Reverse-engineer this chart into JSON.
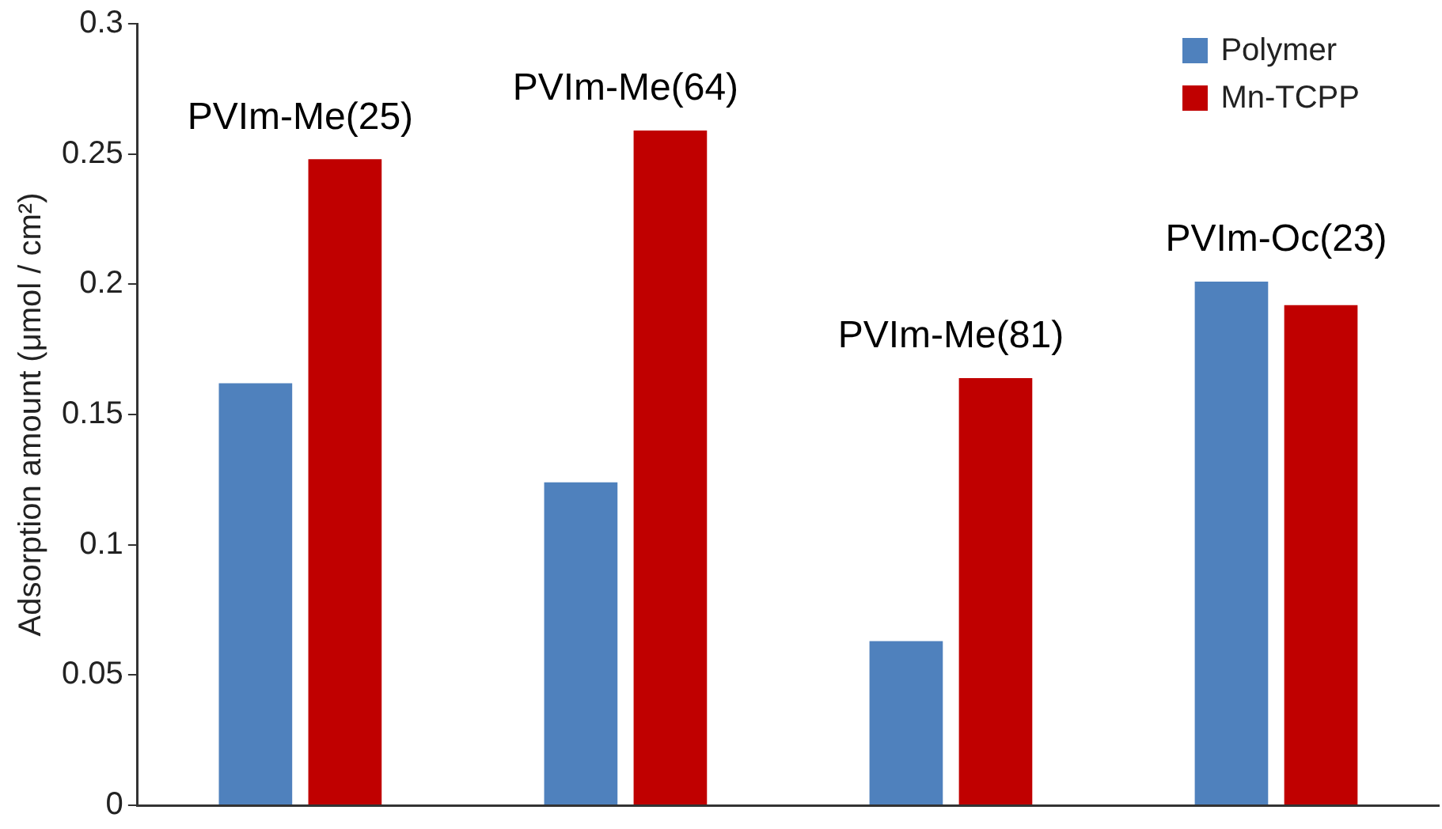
{
  "chart_data": {
    "type": "bar",
    "ylabel": "Adsorption amount (μmol / cm²)",
    "categories": [
      "PVIm-Me(25)",
      "PVIm-Me(64)",
      "PVIm-Me(81)",
      "PVIm-Oc(23)"
    ],
    "series": [
      {
        "name": "Polymer",
        "color": "#4f81bd",
        "values": [
          0.162,
          0.124,
          0.063,
          0.201
        ]
      },
      {
        "name": "Mn-TCPP",
        "color": "#c00000",
        "values": [
          0.248,
          0.259,
          0.164,
          0.192
        ]
      }
    ],
    "ylim": [
      0,
      0.3
    ],
    "yticks": [
      0,
      0.05,
      0.1,
      0.15,
      0.2,
      0.25,
      0.3
    ],
    "grid": false,
    "legend": "top right"
  }
}
